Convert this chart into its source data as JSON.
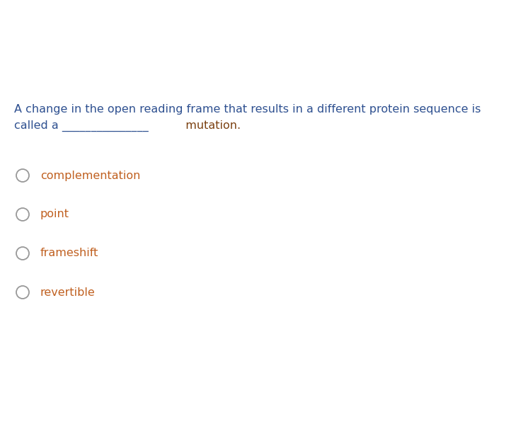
{
  "background_color": "#ffffff",
  "question_line1": "A change in the open reading frame that results in a different protein sequence is",
  "question_line2_pre": "called a _______________",
  "question_line2_post": "  mutation.",
  "question_color": "#2e5090",
  "mutation_color": "#7b4010",
  "options": [
    "complementation",
    "point",
    "frameshift",
    "revertible"
  ],
  "option_text_color": "#c06020",
  "circle_edge_color": "#999999",
  "question_fontsize": 11.5,
  "option_fontsize": 11.5,
  "fig_width": 7.22,
  "fig_height": 6.26,
  "dpi": 100
}
